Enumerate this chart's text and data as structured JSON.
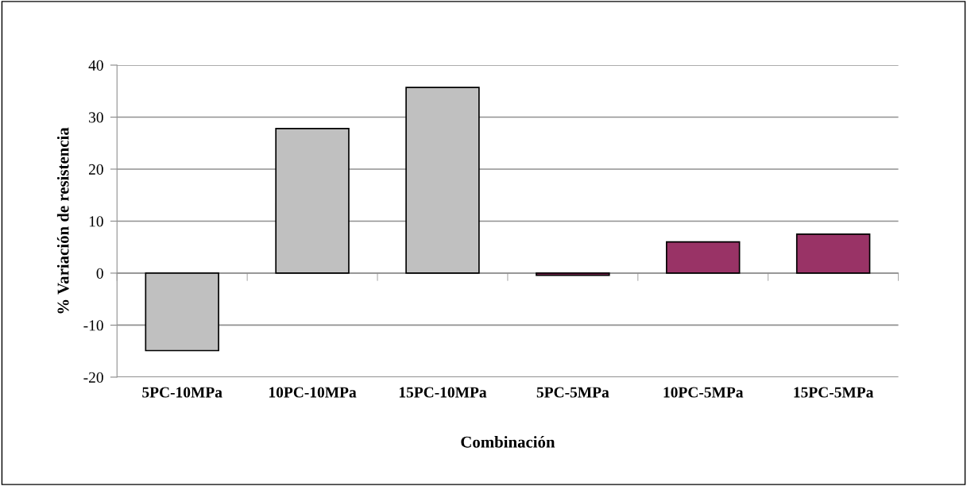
{
  "chart_data": {
    "type": "bar",
    "categories": [
      "5PC-10MPa",
      "10PC-10MPa",
      "15PC-10MPa",
      "5PC-5MPa",
      "10PC-5MPa",
      "15PC-5MPa"
    ],
    "values": [
      -14.9,
      27.8,
      35.7,
      -0.4,
      6.0,
      7.5
    ],
    "colors": [
      "#c0c0c0",
      "#c0c0c0",
      "#c0c0c0",
      "#993366",
      "#993366",
      "#993366"
    ],
    "xlabel": "Combinación",
    "ylabel": "% Variación de resistencia",
    "ylim": [
      -20,
      40
    ],
    "yticks": [
      -20,
      -10,
      0,
      10,
      20,
      30,
      40
    ],
    "grid": "y"
  }
}
